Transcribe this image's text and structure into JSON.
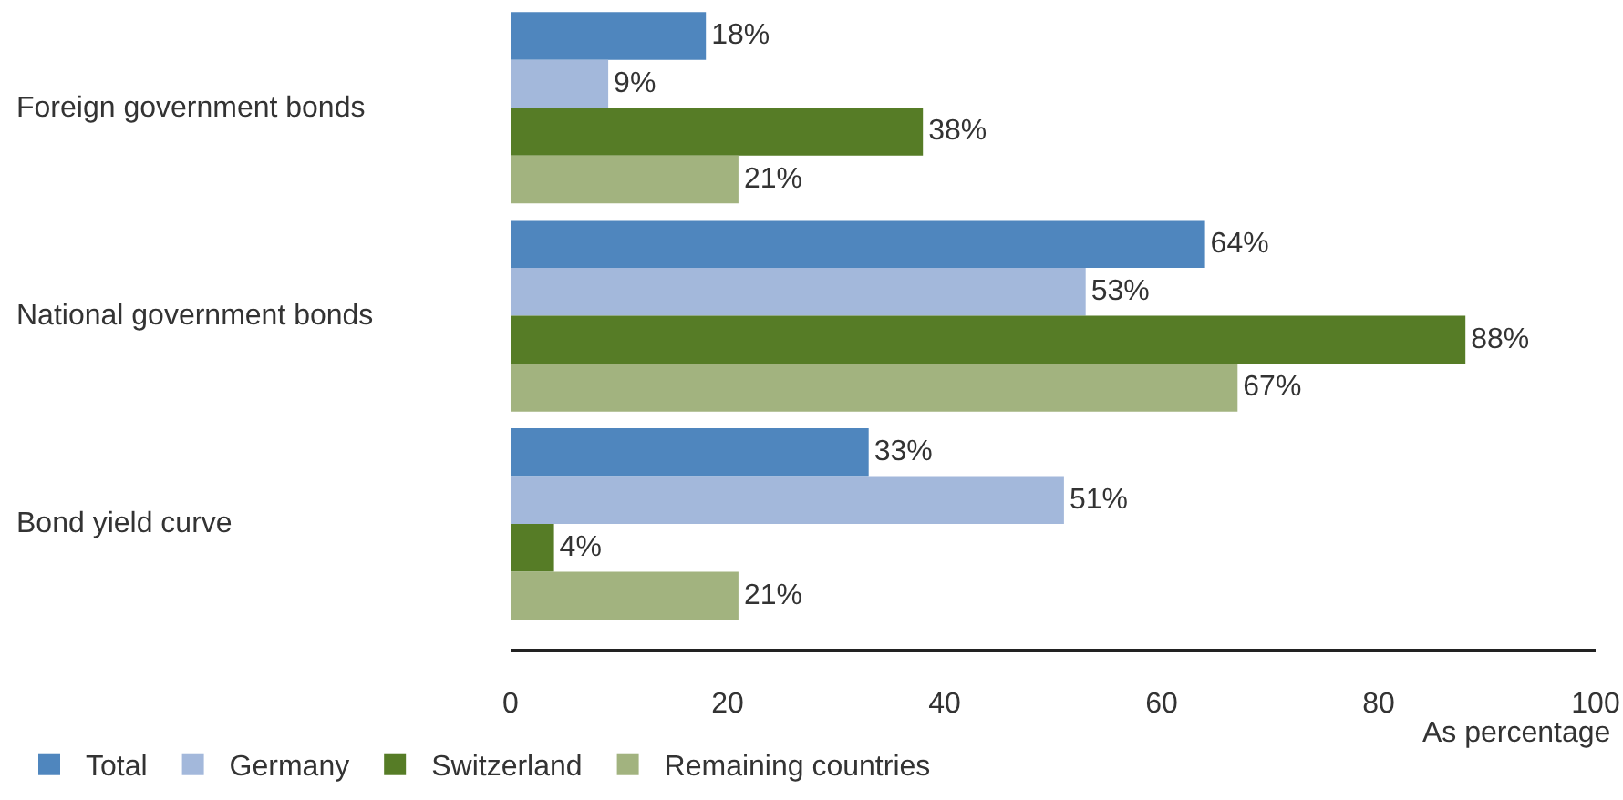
{
  "chart_data": {
    "type": "bar",
    "orientation": "horizontal",
    "categories": [
      "Foreign government bonds",
      "National government bonds",
      "Bond yield curve"
    ],
    "xlabel": "As percentage",
    "xlim": [
      0,
      100
    ],
    "xticks": [
      0,
      20,
      40,
      60,
      80,
      100
    ],
    "grid": false,
    "legend": "bottom left",
    "series": [
      {
        "name": "Total",
        "color": "#4f86be",
        "values": [
          18,
          64,
          33
        ],
        "value_labels": [
          "18%",
          "64%",
          "33%"
        ]
      },
      {
        "name": "Germany",
        "color": "#a3b8db",
        "values": [
          9,
          53,
          51
        ],
        "value_labels": [
          "9%",
          "53%",
          "51%"
        ]
      },
      {
        "name": "Switzerland",
        "color": "#567c26",
        "values": [
          38,
          88,
          4
        ],
        "value_labels": [
          "38%",
          "88%",
          "4%"
        ]
      },
      {
        "name": "Remaining countries",
        "color": "#a2b37f",
        "values": [
          21,
          67,
          21
        ],
        "value_labels": [
          "21%",
          "67%",
          "21%"
        ]
      }
    ]
  }
}
